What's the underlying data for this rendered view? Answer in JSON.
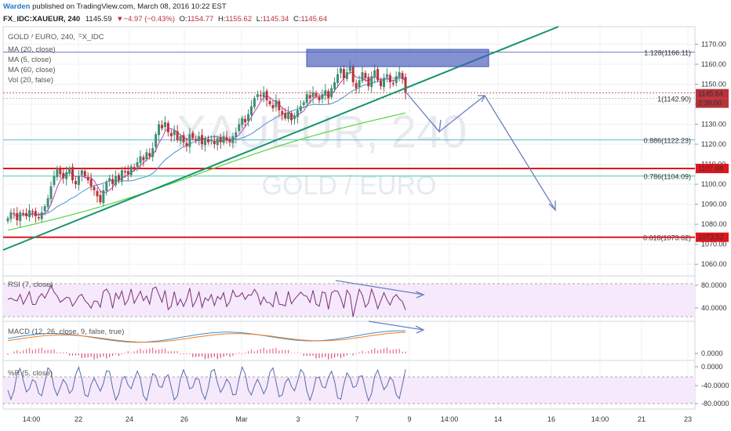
{
  "header": {
    "author": "Warden",
    "published": " published on TradingView.com, March 08, 2016 10:22 EST",
    "symbol": "FX_IDC:XAUEUR, 240",
    "last": "1145.59",
    "change": "−4.97 (−0.43%)",
    "o_label": "O:",
    "o": "1154.77",
    "h_label": "H:",
    "h": "1155.62",
    "l_label": "L:",
    "l": "1145.34",
    "c_label": "C:",
    "c": "1145.64"
  },
  "legend": {
    "title": "GOLD / EURO, 240, FX_IDC",
    "items": [
      "MA (20, close)",
      "MA (5, close)",
      "MA (60, close)",
      "Vol (20, false)"
    ]
  },
  "watermark": {
    "symbol": "XAUEUR, 240",
    "name": "GOLD / EURO"
  },
  "colors": {
    "up": "#3f8f72",
    "down": "#b8333a",
    "ma5": "#c23bb8",
    "ma20": "#4f8fc7",
    "ma60": "#58d43f",
    "trend": "#17946e",
    "red_level": "#e0161d",
    "fib_blue": "#2aa3c7",
    "fib_teal": "#28c9a3",
    "fib_green": "#86c94a",
    "box": "#4457b8",
    "arrow": "#6b7fbf",
    "rsi": "#7b2e78",
    "macd": "#3d8fd4",
    "signal": "#f07c22",
    "wr": "#5a6ca8",
    "panel_fill": "#f5e9fb"
  },
  "chart_data": {
    "type": "candlestick",
    "y_range": [
      1055,
      1178
    ],
    "price_ticks": [
      "1170.00",
      "1160.00",
      "1150.00",
      "1140.00",
      "1130.00",
      "1120.00",
      "1110.00",
      "1100.00",
      "1090.00",
      "1080.00",
      "1070.00",
      "1060.00"
    ],
    "date_ticks": [
      "14:00",
      "22",
      "24",
      "26",
      "Mar",
      "3",
      "7",
      "9",
      "14:00",
      "14",
      "16",
      "14:00",
      "21",
      "23"
    ],
    "price_tags": [
      {
        "value": "1145.64",
        "color": "#b8333a"
      },
      {
        "value": "2:39:00",
        "color": "#b8333a"
      },
      {
        "value": "1107.88",
        "color": "#e0161d"
      },
      {
        "value": "1073.52",
        "color": "#e0161d"
      }
    ],
    "fib_levels": [
      {
        "label": "1.128(1166.11)",
        "value": 1166.11,
        "color": "#4457b8"
      },
      {
        "label": "1(1142.90)",
        "value": 1142.9,
        "color": "#aaaaaa"
      },
      {
        "label": "0.886(1122.23)",
        "value": 1122.23,
        "color": "#2aa3c7"
      },
      {
        "label": "0.786(1104.09)",
        "value": 1104.09,
        "color": "#28c9a3"
      },
      {
        "label": "0.618(1073.62)",
        "value": 1073.62,
        "color": "#86c94a"
      }
    ],
    "red_levels": [
      1107.88,
      1073.52
    ],
    "closes": [
      1083,
      1086,
      1085,
      1082,
      1086,
      1085,
      1084,
      1087,
      1086,
      1084,
      1083,
      1086,
      1089,
      1093,
      1099,
      1104,
      1108,
      1105,
      1103,
      1106,
      1108,
      1102,
      1100,
      1104,
      1107,
      1104,
      1102,
      1099,
      1097,
      1094,
      1091,
      1097,
      1101,
      1103,
      1100,
      1104,
      1102,
      1107,
      1106,
      1105,
      1109,
      1108,
      1111,
      1114,
      1112,
      1116,
      1114,
      1118,
      1125,
      1130,
      1128,
      1131,
      1126,
      1124,
      1127,
      1122,
      1124,
      1121,
      1119,
      1125,
      1123,
      1122,
      1124,
      1120,
      1123,
      1121,
      1122,
      1120,
      1123,
      1121,
      1124,
      1122,
      1121,
      1124,
      1126,
      1130,
      1133,
      1131,
      1135,
      1139,
      1143,
      1145,
      1144,
      1146,
      1142,
      1140,
      1138,
      1142,
      1137,
      1135,
      1133,
      1136,
      1132,
      1134,
      1137,
      1139,
      1141,
      1145,
      1143,
      1146,
      1144,
      1142,
      1145,
      1147,
      1143,
      1148,
      1151,
      1155,
      1158,
      1153,
      1156,
      1159,
      1151,
      1148,
      1152,
      1156,
      1153,
      1149,
      1154,
      1157,
      1152,
      1149,
      1153,
      1155,
      1151,
      1150,
      1154,
      1156,
      1153,
      1145.6
    ],
    "rsi": {
      "label": "RSI (7, close)",
      "ticks": [
        "80.0000",
        "40.0000"
      ]
    },
    "macd": {
      "label": "MACD (12, 26, close, 9, false, true)",
      "ticks": [
        "0.0000"
      ]
    },
    "wr": {
      "label": "%R (5, close)",
      "ticks": [
        "0.0000",
        "-40.0000",
        "-80.0000"
      ]
    }
  }
}
